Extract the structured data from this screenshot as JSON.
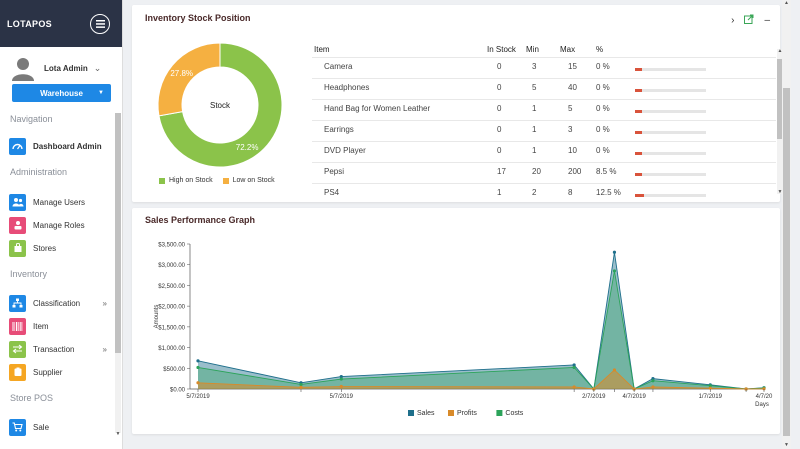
{
  "app": {
    "brand": "LOTAPOS"
  },
  "user": {
    "name": "Lota Admin"
  },
  "store_select": {
    "value": "Warehouse"
  },
  "sidebar": {
    "sections": [
      {
        "label": "Navigation"
      },
      {
        "label": "Administration"
      },
      {
        "label": "Inventory"
      },
      {
        "label": "Store POS"
      }
    ],
    "items": [
      {
        "label": "Dashboard Admin",
        "color": "#1e88e5"
      },
      {
        "label": "Manage Users",
        "color": "#1e88e5"
      },
      {
        "label": "Manage Roles",
        "color": "#e74c78"
      },
      {
        "label": "Stores",
        "color": "#8bc34a"
      },
      {
        "label": "Classification",
        "color": "#1e88e5"
      },
      {
        "label": "Item",
        "color": "#e74c78"
      },
      {
        "label": "Transaction",
        "color": "#8bc34a"
      },
      {
        "label": "Supplier",
        "color": "#f5a623"
      },
      {
        "label": "Sale",
        "color": "#1e88e5"
      }
    ]
  },
  "inventory": {
    "title": "Inventory Stock Position",
    "donut": {
      "center_label": "Stock",
      "high_pct": 72.2,
      "low_pct": 27.8,
      "high_label": "72.2%",
      "low_label": "27.8%",
      "high_color": "#8bc34a",
      "low_color": "#f5b041",
      "legend_high": "High on Stock",
      "legend_low": "Low on Stock"
    },
    "columns": [
      "Item",
      "In Stock",
      "Min",
      "Max",
      "%"
    ],
    "rows": [
      {
        "item": "Camera",
        "in_stock": "0",
        "min": "3",
        "max": "15",
        "pct": "0 %",
        "fill": 0.04
      },
      {
        "item": "Headphones",
        "in_stock": "0",
        "min": "5",
        "max": "40",
        "pct": "0 %",
        "fill": 0.04
      },
      {
        "item": "Hand Bag for Women Leather",
        "in_stock": "0",
        "min": "1",
        "max": "5",
        "pct": "0 %",
        "fill": 0.04
      },
      {
        "item": "Earrings",
        "in_stock": "0",
        "min": "1",
        "max": "3",
        "pct": "0 %",
        "fill": 0.04
      },
      {
        "item": "DVD Player",
        "in_stock": "0",
        "min": "1",
        "max": "10",
        "pct": "0 %",
        "fill": 0.04
      },
      {
        "item": "Pepsi",
        "in_stock": "17",
        "min": "20",
        "max": "200",
        "pct": "8.5 %",
        "fill": 0.085
      },
      {
        "item": "PS4",
        "in_stock": "1",
        "min": "2",
        "max": "8",
        "pct": "12.5 %",
        "fill": 0.125
      }
    ]
  },
  "sales": {
    "title": "Sales Performance Graph"
  },
  "chart_data": {
    "type": "area",
    "title": "Sales Performance Graph",
    "xlabel": "Days",
    "ylabel": "Amounts",
    "ylim": [
      0,
      3500
    ],
    "y_ticks": [
      "$0.00",
      "$500.00",
      "$1,000.00",
      "$1,500.00",
      "$2,000.00",
      "$2,500.00",
      "$3,000.00",
      "$3,500.00"
    ],
    "x_tick_labels": [
      "5/7/2019",
      "5/7/2019",
      "2/7/2019",
      "4/7/2019",
      "1/7/2019",
      "4/7/20"
    ],
    "x_index": [
      0,
      1,
      2,
      3,
      4,
      5,
      6,
      7,
      8,
      9,
      10
    ],
    "series": [
      {
        "name": "Sales",
        "color": "#1f6f8b",
        "values": [
          680,
          150,
          300,
          580,
          0,
          3300,
          0,
          250,
          100,
          0,
          30
        ]
      },
      {
        "name": "Profits",
        "color": "#d88a2a",
        "values": [
          150,
          40,
          60,
          50,
          0,
          460,
          0,
          50,
          20,
          0,
          5
        ]
      },
      {
        "name": "Costs",
        "color": "#2ca35a",
        "values": [
          520,
          110,
          240,
          520,
          0,
          2850,
          0,
          200,
          80,
          0,
          25
        ]
      }
    ],
    "legend": [
      "Sales",
      "Profits",
      "Costs"
    ],
    "legend_position": "bottom"
  }
}
